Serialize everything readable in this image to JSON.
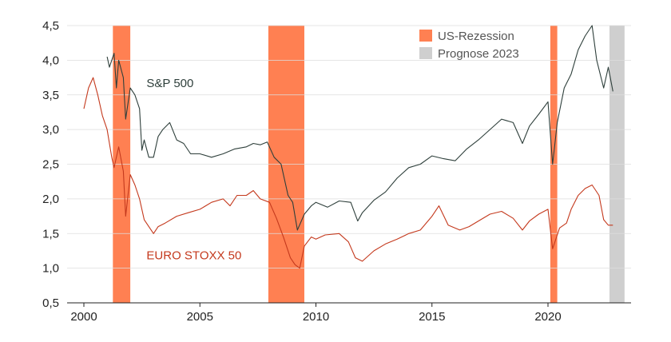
{
  "chart_data": {
    "type": "line",
    "title": "",
    "xlabel": "",
    "ylabel": "",
    "xlim": [
      1999.6,
      2023.3
    ],
    "ylim": [
      0.5,
      4.5
    ],
    "x_ticks": [
      2000,
      2005,
      2010,
      2015,
      2020
    ],
    "x_tick_labels": [
      "2000",
      "2005",
      "2010",
      "2015",
      "2020"
    ],
    "y_ticks": [
      0.5,
      1.0,
      1.5,
      2.0,
      2.5,
      3.0,
      3.5,
      4.0,
      4.5
    ],
    "y_tick_labels": [
      "0,5",
      "1,0",
      "1,5",
      "2,0",
      "2,5",
      "3,0",
      "3,5",
      "4,0",
      "4,5"
    ],
    "grid": true,
    "legend_position": "top-right",
    "legend": [
      {
        "label": "US-Rezession",
        "color": "#ff8052"
      },
      {
        "label": "Prognose 2023",
        "color": "#cfcfcf"
      }
    ],
    "bands": [
      {
        "kind": "recession",
        "start": 2001.25,
        "end": 2002.0
      },
      {
        "kind": "recession",
        "start": 2007.95,
        "end": 2009.5
      },
      {
        "kind": "recession",
        "start": 2020.1,
        "end": 2020.4
      },
      {
        "kind": "forecast",
        "start": 2022.65,
        "end": 2023.3
      }
    ],
    "series": [
      {
        "name": "S&P 500",
        "color": "#2e3f3b",
        "x": [
          2001.0,
          2001.1,
          2001.3,
          2001.4,
          2001.5,
          2001.7,
          2001.8,
          2002.0,
          2002.2,
          2002.4,
          2002.5,
          2002.6,
          2002.8,
          2003.0,
          2003.2,
          2003.4,
          2003.7,
          2004.0,
          2004.3,
          2004.6,
          2005.0,
          2005.5,
          2006.0,
          2006.5,
          2007.0,
          2007.3,
          2007.6,
          2007.9,
          2008.2,
          2008.5,
          2008.8,
          2009.0,
          2009.2,
          2009.5,
          2009.8,
          2010.0,
          2010.5,
          2011.0,
          2011.5,
          2011.8,
          2012.0,
          2012.5,
          2013.0,
          2013.5,
          2014.0,
          2014.5,
          2015.0,
          2015.5,
          2016.0,
          2016.5,
          2017.0,
          2017.5,
          2018.0,
          2018.5,
          2018.9,
          2019.2,
          2019.6,
          2020.0,
          2020.2,
          2020.4,
          2020.7,
          2021.0,
          2021.3,
          2021.6,
          2021.9,
          2022.1,
          2022.4,
          2022.6,
          2022.8
        ],
        "y": [
          4.05,
          3.9,
          4.1,
          3.6,
          4.0,
          3.75,
          3.15,
          3.6,
          3.5,
          3.3,
          2.7,
          2.85,
          2.6,
          2.6,
          2.9,
          3.0,
          3.1,
          2.85,
          2.8,
          2.65,
          2.65,
          2.6,
          2.65,
          2.72,
          2.75,
          2.8,
          2.78,
          2.82,
          2.6,
          2.5,
          2.05,
          1.95,
          1.55,
          1.78,
          1.9,
          1.95,
          1.88,
          1.97,
          1.95,
          1.68,
          1.8,
          1.98,
          2.1,
          2.3,
          2.45,
          2.5,
          2.62,
          2.58,
          2.55,
          2.72,
          2.85,
          3.0,
          3.15,
          3.1,
          2.8,
          3.05,
          3.22,
          3.4,
          2.5,
          3.1,
          3.6,
          3.8,
          4.15,
          4.35,
          4.5,
          4.0,
          3.6,
          3.9,
          3.55
        ]
      },
      {
        "name": "EURO STOXX 50",
        "color": "#c4391d",
        "x": [
          2000.0,
          2000.2,
          2000.4,
          2000.6,
          2000.8,
          2001.0,
          2001.2,
          2001.3,
          2001.5,
          2001.7,
          2001.8,
          2002.0,
          2002.2,
          2002.4,
          2002.6,
          2002.8,
          2003.0,
          2003.2,
          2003.5,
          2004.0,
          2004.5,
          2005.0,
          2005.5,
          2006.0,
          2006.3,
          2006.6,
          2007.0,
          2007.3,
          2007.6,
          2008.0,
          2008.3,
          2008.6,
          2008.9,
          2009.1,
          2009.3,
          2009.5,
          2009.8,
          2010.0,
          2010.4,
          2011.0,
          2011.4,
          2011.7,
          2012.0,
          2012.5,
          2013.0,
          2013.5,
          2014.0,
          2014.5,
          2015.0,
          2015.3,
          2015.7,
          2016.2,
          2016.6,
          2017.0,
          2017.5,
          2018.0,
          2018.5,
          2018.9,
          2019.2,
          2019.6,
          2020.0,
          2020.2,
          2020.5,
          2020.8,
          2021.0,
          2021.3,
          2021.6,
          2021.9,
          2022.2,
          2022.4,
          2022.6,
          2022.8
        ],
        "y": [
          3.3,
          3.6,
          3.75,
          3.5,
          3.2,
          3.0,
          2.6,
          2.45,
          2.75,
          2.4,
          1.75,
          2.35,
          2.2,
          2.0,
          1.7,
          1.6,
          1.5,
          1.6,
          1.65,
          1.75,
          1.8,
          1.85,
          1.95,
          2.0,
          1.9,
          2.05,
          2.05,
          2.12,
          2.0,
          1.95,
          1.72,
          1.45,
          1.15,
          1.05,
          1.0,
          1.32,
          1.45,
          1.42,
          1.48,
          1.5,
          1.38,
          1.15,
          1.1,
          1.25,
          1.35,
          1.42,
          1.5,
          1.55,
          1.75,
          1.9,
          1.62,
          1.55,
          1.6,
          1.68,
          1.78,
          1.82,
          1.72,
          1.55,
          1.68,
          1.78,
          1.85,
          1.28,
          1.58,
          1.65,
          1.85,
          2.05,
          2.15,
          2.2,
          2.05,
          1.7,
          1.62,
          1.62
        ]
      }
    ]
  }
}
